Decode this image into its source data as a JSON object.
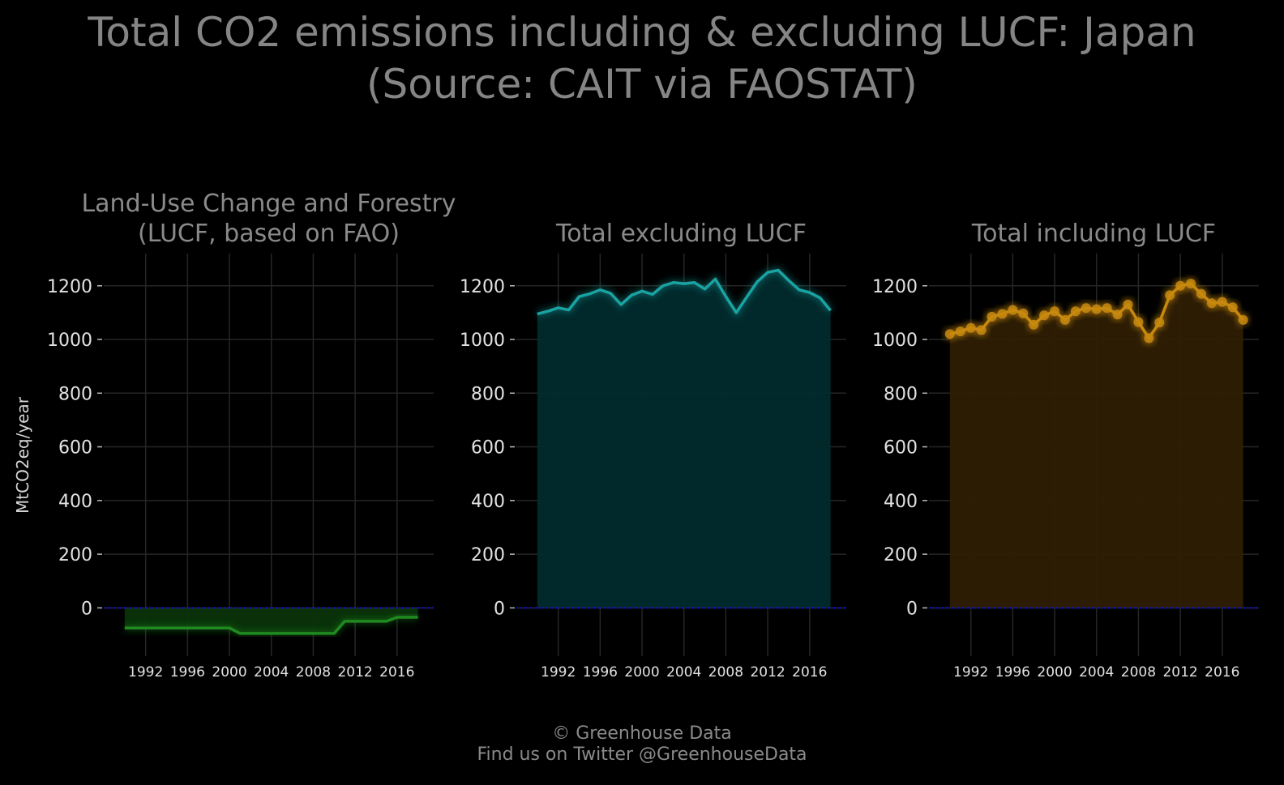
{
  "title_line1": "Total CO2 emissions including & excluding LUCF: Japan",
  "title_line2": "(Source: CAIT via FAOSTAT)",
  "footer_line1": "© Greenhouse Data",
  "footer_line2": "Find us on Twitter @GreenhouseData",
  "chart_data": [
    {
      "type": "area",
      "title_lines": [
        "Land-Use Change and Forestry",
        "(LUCF, based on FAO)"
      ],
      "ylabel": "MtCO2eq/year",
      "color": "#1f8a1f",
      "fill": "#0a330a",
      "markers": false,
      "x": [
        1990,
        1991,
        1992,
        1993,
        1994,
        1995,
        1996,
        1997,
        1998,
        1999,
        2000,
        2001,
        2002,
        2003,
        2004,
        2005,
        2006,
        2007,
        2008,
        2009,
        2010,
        2011,
        2012,
        2013,
        2014,
        2015,
        2016,
        2017,
        2018
      ],
      "values": [
        -75,
        -75,
        -75,
        -75,
        -75,
        -75,
        -75,
        -75,
        -75,
        -75,
        -75,
        -95,
        -95,
        -95,
        -95,
        -95,
        -95,
        -95,
        -95,
        -95,
        -95,
        -50,
        -50,
        -50,
        -50,
        -50,
        -35,
        -35,
        -35
      ],
      "xticks": [
        1992,
        1996,
        2000,
        2004,
        2008,
        2012,
        2016
      ],
      "yticks": [
        0,
        200,
        400,
        600,
        800,
        1000,
        1200
      ],
      "ylim": [
        -180,
        1320
      ],
      "xlim": [
        1988,
        2019.5
      ],
      "zero_line_color": "#1515c8"
    },
    {
      "type": "area",
      "title_lines": [
        "Total excluding LUCF"
      ],
      "color": "#1aa3a3",
      "fill": "#012a2c",
      "markers": false,
      "x": [
        1990,
        1991,
        1992,
        1993,
        1994,
        1995,
        1996,
        1997,
        1998,
        1999,
        2000,
        2001,
        2002,
        2003,
        2004,
        2005,
        2006,
        2007,
        2008,
        2009,
        2010,
        2011,
        2012,
        2013,
        2014,
        2015,
        2016,
        2017,
        2018
      ],
      "values": [
        1095,
        1105,
        1118,
        1110,
        1160,
        1170,
        1185,
        1172,
        1130,
        1165,
        1180,
        1168,
        1200,
        1212,
        1208,
        1212,
        1188,
        1225,
        1160,
        1100,
        1158,
        1215,
        1250,
        1258,
        1220,
        1185,
        1175,
        1155,
        1108
      ],
      "xticks": [
        1992,
        1996,
        2000,
        2004,
        2008,
        2012,
        2016
      ],
      "yticks": [
        0,
        200,
        400,
        600,
        800,
        1000,
        1200
      ],
      "ylim": [
        -180,
        1320
      ],
      "xlim": [
        1988,
        2019.5
      ],
      "zero_line_color": "#1515c8"
    },
    {
      "type": "area",
      "title_lines": [
        "Total including LUCF"
      ],
      "color": "#c8890f",
      "fill": "#2e1e04",
      "markers": true,
      "x": [
        1990,
        1991,
        1992,
        1993,
        1994,
        1995,
        1996,
        1997,
        1998,
        1999,
        2000,
        2001,
        2002,
        2003,
        2004,
        2005,
        2006,
        2007,
        2008,
        2009,
        2010,
        2011,
        2012,
        2013,
        2014,
        2015,
        2016,
        2017,
        2018
      ],
      "values": [
        1020,
        1030,
        1043,
        1035,
        1085,
        1095,
        1110,
        1097,
        1055,
        1090,
        1105,
        1073,
        1105,
        1117,
        1113,
        1117,
        1093,
        1130,
        1065,
        1005,
        1063,
        1165,
        1200,
        1208,
        1170,
        1135,
        1140,
        1120,
        1073
      ],
      "xticks": [
        1992,
        1996,
        2000,
        2004,
        2008,
        2012,
        2016
      ],
      "yticks": [
        0,
        200,
        400,
        600,
        800,
        1000,
        1200
      ],
      "ylim": [
        -180,
        1320
      ],
      "xlim": [
        1988,
        2019.5
      ],
      "zero_line_color": "#1515c8"
    }
  ]
}
